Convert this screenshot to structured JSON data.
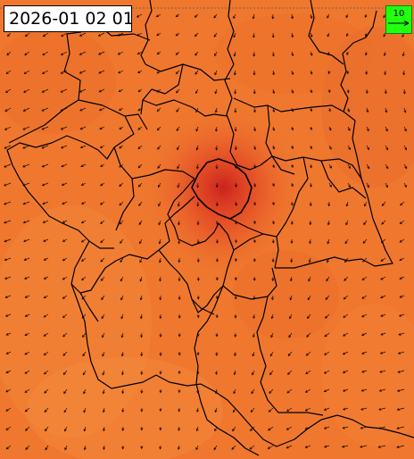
{
  "map": {
    "timestamp": "2026-01 02 01",
    "wind_legend": {
      "value_label": "10",
      "box_color": "#22ff11"
    },
    "colors": {
      "field_base": "#f0782e",
      "field_hotspot": "#d0201e",
      "boundary": "#000000",
      "wind_arrow": "#1a0a05"
    }
  }
}
